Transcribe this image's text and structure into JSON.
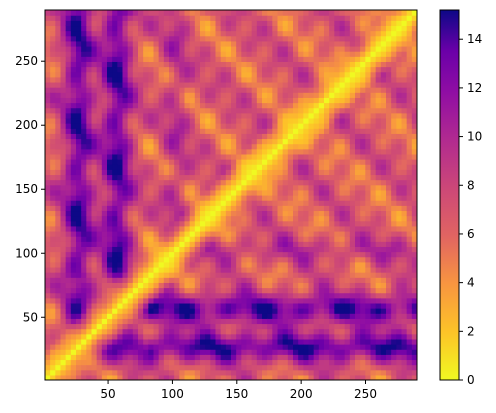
{
  "chart_data": {
    "type": "heatmap",
    "title": "",
    "xlabel": "",
    "ylabel": "",
    "xlim": [
      1,
      290
    ],
    "ylim": [
      1,
      290
    ],
    "x_ticks": [
      50,
      100,
      150,
      200,
      250
    ],
    "y_ticks": [
      50,
      100,
      150,
      200,
      250
    ],
    "x_tick_labels": [
      "50",
      "100",
      "150",
      "200",
      "250"
    ],
    "y_tick_labels": [
      "50",
      "100",
      "150",
      "200",
      "250"
    ],
    "colormap": "plasma_r",
    "colorbar": {
      "min": 0,
      "max": 15.2,
      "ticks": [
        0,
        2,
        4,
        6,
        8,
        10,
        12,
        14
      ],
      "tick_labels": [
        "0",
        "2",
        "4",
        "6",
        "8",
        "10",
        "12",
        "14"
      ]
    },
    "diagonal_value": 0,
    "description_of_structure": {
      "high_columns_x": [
        27,
        57
      ],
      "high_rows_y": [
        27,
        57,
        103
      ],
      "grid": false
    },
    "colors": {
      "low": "#f0f921",
      "mid_low": "#f89540",
      "mid": "#cc4778",
      "mid_high": "#7e03a8",
      "high": "#0d0887"
    }
  }
}
